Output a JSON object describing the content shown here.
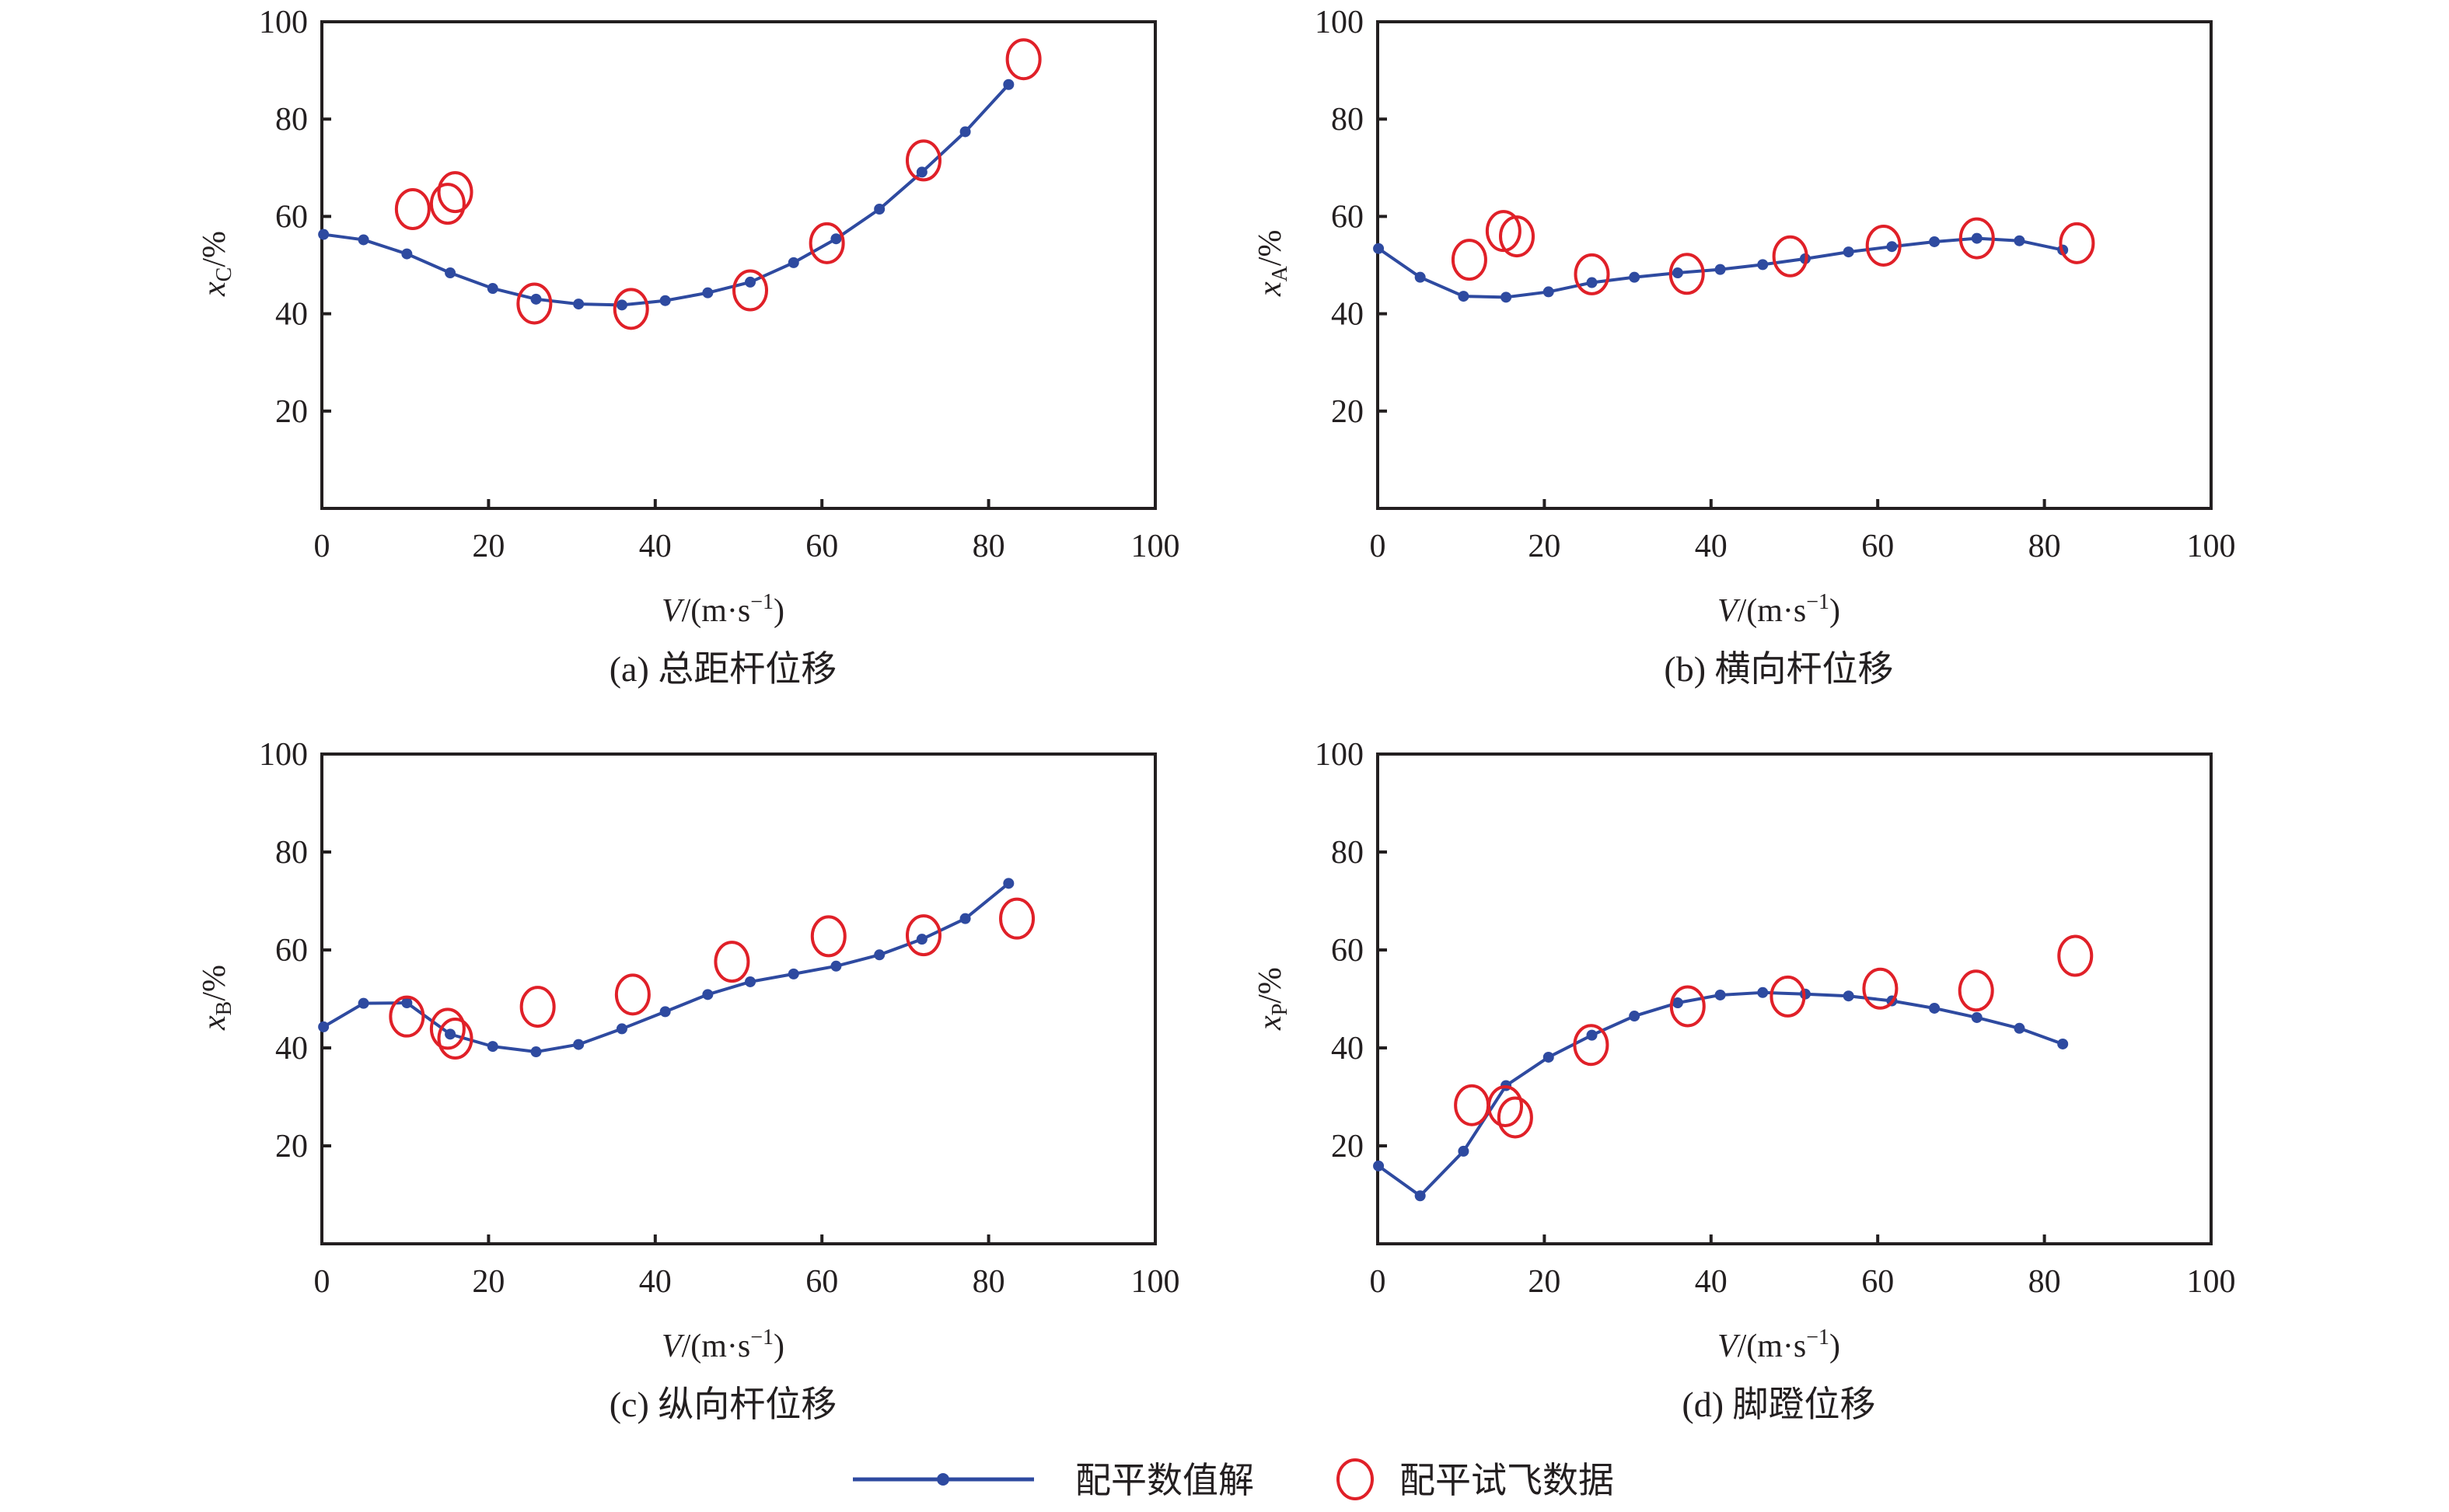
{
  "figure": {
    "legend": {
      "numeric_label": "配平数值解",
      "flight_label": "配平试飞数据",
      "numeric_color": "#2e4aa0",
      "flight_color": "#e02028"
    }
  },
  "chart_data": [
    {
      "type": "line",
      "id": "a",
      "title": "(a) 总距杆位移",
      "xlabel": "V/(m·s⁻¹)",
      "ylabel": "x_C/%",
      "ylabel_main": "x",
      "ylabel_sub": "C",
      "ylabel_tail": "/%",
      "xlim": [
        0,
        100
      ],
      "ylim": [
        0,
        100
      ],
      "xticks": [
        0,
        20,
        40,
        60,
        80,
        100
      ],
      "yticks": [
        20,
        40,
        60,
        80,
        100
      ],
      "grid": false,
      "series": [
        {
          "name": "配平数值解",
          "style": "line-dot",
          "x": [
            0.2,
            5.0,
            10.2,
            15.4,
            20.5,
            25.7,
            30.8,
            36.0,
            41.2,
            46.3,
            51.4,
            56.6,
            61.7,
            66.9,
            72.0,
            77.2,
            82.4
          ],
          "y": [
            56.3,
            55.2,
            52.3,
            48.4,
            45.2,
            43.0,
            42.0,
            41.8,
            42.7,
            44.3,
            46.5,
            50.5,
            55.4,
            61.5,
            69.1,
            77.4,
            87.1
          ]
        },
        {
          "name": "配平试飞数据",
          "style": "open-circle",
          "x": [
            10.9,
            15.1,
            16.0,
            25.5,
            37.1,
            51.4,
            60.6,
            72.2,
            84.2
          ],
          "y": [
            61.5,
            62.6,
            65.0,
            42.1,
            41.0,
            44.8,
            54.5,
            71.5,
            92.3
          ]
        }
      ]
    },
    {
      "type": "line",
      "id": "b",
      "title": "(b) 横向杆位移",
      "xlabel": "V/(m·s⁻¹)",
      "ylabel": "x_A/%",
      "ylabel_main": "x",
      "ylabel_sub": "A",
      "ylabel_tail": "/%",
      "xlim": [
        0,
        100
      ],
      "ylim": [
        0,
        100
      ],
      "xticks": [
        0,
        20,
        40,
        60,
        80,
        100
      ],
      "yticks": [
        20,
        40,
        60,
        80,
        100
      ],
      "grid": false,
      "series": [
        {
          "name": "配平数值解",
          "style": "line-dot",
          "x": [
            0.1,
            5.1,
            10.3,
            15.4,
            20.5,
            25.7,
            30.8,
            36.0,
            41.1,
            46.2,
            51.3,
            56.5,
            61.7,
            66.8,
            71.9,
            77.0,
            82.2
          ],
          "y": [
            53.4,
            47.5,
            43.6,
            43.4,
            44.5,
            46.4,
            47.5,
            48.4,
            49.1,
            50.1,
            51.3,
            52.7,
            53.8,
            54.8,
            55.5,
            55.0,
            53.1
          ]
        },
        {
          "name": "配平试飞数据",
          "style": "open-circle",
          "x": [
            11.0,
            15.1,
            16.7,
            25.7,
            37.1,
            49.5,
            60.7,
            71.9,
            83.9
          ],
          "y": [
            51.1,
            57.0,
            55.9,
            48.1,
            48.2,
            51.8,
            54.0,
            55.5,
            54.5
          ]
        }
      ]
    },
    {
      "type": "line",
      "id": "c",
      "title": "(c) 纵向杆位移",
      "xlabel": "V/(m·s⁻¹)",
      "ylabel": "x_B/%",
      "ylabel_main": "x",
      "ylabel_sub": "B",
      "ylabel_tail": "/%",
      "xlim": [
        0,
        100
      ],
      "ylim": [
        0,
        100
      ],
      "xticks": [
        0,
        20,
        40,
        60,
        80,
        100
      ],
      "yticks": [
        20,
        40,
        60,
        80,
        100
      ],
      "grid": false,
      "series": [
        {
          "name": "配平数值解",
          "style": "line-dot",
          "x": [
            0.2,
            5.0,
            10.2,
            15.4,
            20.5,
            25.7,
            30.8,
            36.0,
            41.2,
            46.3,
            51.4,
            56.6,
            61.7,
            66.9,
            72.0,
            77.2,
            82.4
          ],
          "y": [
            44.3,
            49.1,
            49.2,
            42.8,
            40.3,
            39.2,
            40.7,
            43.9,
            47.4,
            50.9,
            53.5,
            55.1,
            56.7,
            59.0,
            62.2,
            66.4,
            73.6
          ]
        },
        {
          "name": "配平试飞数据",
          "style": "open-circle",
          "x": [
            10.2,
            15.1,
            16.0,
            25.9,
            37.3,
            49.2,
            60.8,
            72.2,
            83.4
          ],
          "y": [
            46.4,
            43.9,
            41.9,
            48.4,
            50.9,
            57.6,
            62.8,
            63.0,
            66.4
          ]
        }
      ]
    },
    {
      "type": "line",
      "id": "d",
      "title": "(d) 脚蹬位移",
      "xlabel": "V/(m·s⁻¹)",
      "ylabel": "x_P/%",
      "ylabel_main": "x",
      "ylabel_sub": "P",
      "ylabel_tail": "/%",
      "xlim": [
        0,
        100
      ],
      "ylim": [
        0,
        100
      ],
      "xticks": [
        0,
        20,
        40,
        60,
        80,
        100
      ],
      "yticks": [
        20,
        40,
        60,
        80,
        100
      ],
      "grid": false,
      "series": [
        {
          "name": "配平数值解",
          "style": "line-dot",
          "x": [
            0.1,
            5.1,
            10.3,
            15.4,
            20.5,
            25.7,
            30.8,
            36.0,
            41.1,
            46.2,
            51.3,
            56.5,
            61.7,
            66.8,
            71.9,
            77.0,
            82.2
          ],
          "y": [
            15.9,
            9.8,
            18.9,
            32.3,
            38.1,
            42.6,
            46.5,
            49.2,
            50.8,
            51.3,
            51.0,
            50.6,
            49.6,
            48.1,
            46.2,
            44.0,
            40.8
          ]
        },
        {
          "name": "配平试飞数据",
          "style": "open-circle",
          "x": [
            11.3,
            15.3,
            16.5,
            25.6,
            37.2,
            49.2,
            60.3,
            71.8,
            83.7
          ],
          "y": [
            28.3,
            28.1,
            25.8,
            40.6,
            48.5,
            50.5,
            52.1,
            51.7,
            58.8
          ]
        }
      ]
    }
  ]
}
